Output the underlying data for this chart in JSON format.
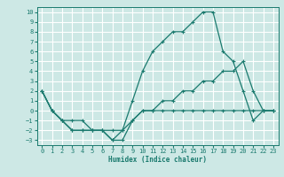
{
  "xlabel": "Humidex (Indice chaleur)",
  "bg_color": "#cde8e5",
  "grid_color": "#ffffff",
  "line_color": "#1a7a6e",
  "xlim": [
    -0.5,
    23.5
  ],
  "ylim": [
    -3.5,
    10.5
  ],
  "xticks": [
    0,
    1,
    2,
    3,
    4,
    5,
    6,
    7,
    8,
    9,
    10,
    11,
    12,
    13,
    14,
    15,
    16,
    17,
    18,
    19,
    20,
    21,
    22,
    23
  ],
  "yticks": [
    -3,
    -2,
    -1,
    0,
    1,
    2,
    3,
    4,
    5,
    6,
    7,
    8,
    9,
    10
  ],
  "line_top_x": [
    0,
    1,
    2,
    3,
    4,
    5,
    6,
    7,
    8,
    9,
    10,
    11,
    12,
    13,
    14,
    15,
    16,
    17,
    18,
    19,
    20,
    21,
    22,
    23
  ],
  "line_top_y": [
    2,
    0,
    -1,
    -2,
    -2,
    -2,
    -2,
    -3,
    -2,
    1,
    4,
    6,
    7,
    8,
    8,
    9,
    10,
    10,
    6,
    5,
    2,
    -1,
    0,
    0
  ],
  "line_mid_x": [
    0,
    1,
    2,
    3,
    4,
    5,
    6,
    7,
    8,
    9,
    10,
    11,
    12,
    13,
    14,
    15,
    16,
    17,
    18,
    19,
    20,
    21,
    22,
    23
  ],
  "line_mid_y": [
    2,
    0,
    -1,
    -1,
    -1,
    -2,
    -2,
    -2,
    -2,
    -1,
    0,
    0,
    1,
    1,
    2,
    2,
    3,
    3,
    4,
    4,
    5,
    2,
    0,
    0
  ],
  "line_bot_x": [
    0,
    1,
    2,
    3,
    4,
    5,
    6,
    7,
    8,
    9,
    10,
    11,
    12,
    13,
    14,
    15,
    16,
    17,
    18,
    19,
    20,
    21,
    22,
    23
  ],
  "line_bot_y": [
    2,
    0,
    -1,
    -2,
    -2,
    -2,
    -2,
    -3,
    -3,
    -1,
    0,
    0,
    0,
    0,
    0,
    0,
    0,
    0,
    0,
    0,
    0,
    0,
    0,
    0
  ]
}
